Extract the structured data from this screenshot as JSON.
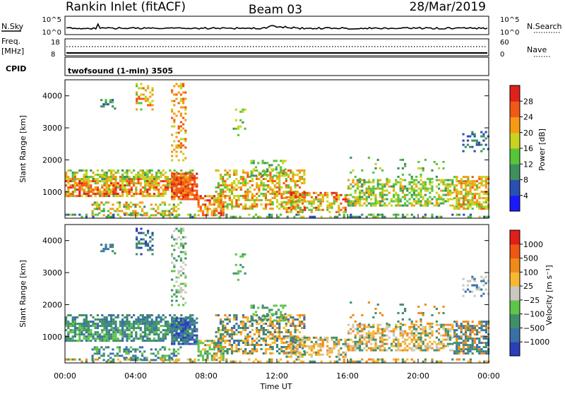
{
  "header": {
    "station": "Rankin Inlet (fitACF)",
    "beam": "Beam 03",
    "date": "28/Mar/2019"
  },
  "strips": {
    "noise": {
      "left_label": "N.Sky",
      "right_label": "N.Search",
      "left_ticks": [
        "10^5",
        "10^0"
      ],
      "right_ticks": [
        "10^5",
        "10^0"
      ]
    },
    "freq": {
      "left_label_1": "Freq.",
      "left_label_2": "[MHz]",
      "left_ticks": [
        "18",
        "8"
      ],
      "right_label": "Nave",
      "right_ticks": [
        "60",
        "0"
      ]
    },
    "cpid": {
      "label": "CPID",
      "text": "twofsound (1-min) 3505"
    }
  },
  "chart_data": [
    {
      "type": "heatmap",
      "title": "",
      "xlabel": "Time UT",
      "ylabel": "Slant Range [km]",
      "x_range_hours": [
        0,
        24
      ],
      "ylim": [
        180,
        4500
      ],
      "y_ticks": [
        "1000",
        "2000",
        "3000",
        "4000"
      ],
      "x_tick_labels": [
        "00:00",
        "04:00",
        "08:00",
        "12:00",
        "16:00",
        "20:00",
        "00:00"
      ],
      "colorbar": {
        "label": "Power [dB]",
        "ticks": [
          "4",
          "8",
          "12",
          "16",
          "20",
          "24",
          "28"
        ],
        "colors": [
          "#1a1aff",
          "#2850b0",
          "#3f8f5f",
          "#57c43a",
          "#c9d21f",
          "#f59a12",
          "#f05a14",
          "#e0201a"
        ]
      }
    },
    {
      "type": "heatmap",
      "title": "",
      "xlabel": "Time UT",
      "ylabel": "Slant Range [km]",
      "x_range_hours": [
        0,
        24
      ],
      "ylim": [
        180,
        4500
      ],
      "y_ticks": [
        "1000",
        "2000",
        "3000",
        "4000"
      ],
      "x_tick_labels": [
        "00:00",
        "04:00",
        "08:00",
        "12:00",
        "16:00",
        "20:00",
        "00:00"
      ],
      "colorbar": {
        "label": "Velocity [m s⁻¹]",
        "ticks": [
          "1000",
          "500",
          "100",
          "25",
          "−25",
          "−100",
          "−500",
          "−1000"
        ],
        "colors": [
          "#2a3fb8",
          "#3a70a8",
          "#3f8f6a",
          "#5fc44a",
          "#c8c8c0",
          "#f5b830",
          "#f08a18",
          "#f05514",
          "#e01e1a"
        ]
      }
    }
  ],
  "axis": {
    "time_label": "Time UT"
  }
}
